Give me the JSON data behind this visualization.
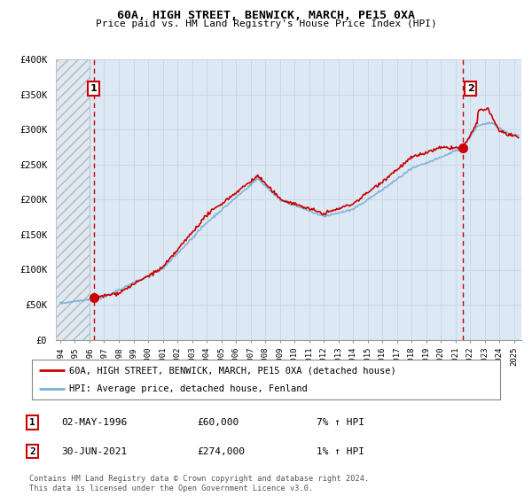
{
  "title": "60A, HIGH STREET, BENWICK, MARCH, PE15 0XA",
  "subtitle": "Price paid vs. HM Land Registry's House Price Index (HPI)",
  "ylim": [
    0,
    400000
  ],
  "yticks": [
    0,
    50000,
    100000,
    150000,
    200000,
    250000,
    300000,
    350000,
    400000
  ],
  "ytick_labels": [
    "£0",
    "£50K",
    "£100K",
    "£150K",
    "£200K",
    "£250K",
    "£300K",
    "£350K",
    "£400K"
  ],
  "xlim_start": 1993.7,
  "xlim_end": 2025.5,
  "hpi_color": "#7bafd4",
  "price_color": "#cc0000",
  "sale1_year": 1996.33,
  "sale1_price": 60000,
  "sale1_label": "1",
  "sale2_year": 2021.5,
  "sale2_price": 274000,
  "sale2_label": "2",
  "legend_line1": "60A, HIGH STREET, BENWICK, MARCH, PE15 0XA (detached house)",
  "legend_line2": "HPI: Average price, detached house, Fenland",
  "table_row1_num": "1",
  "table_row1_date": "02-MAY-1996",
  "table_row1_price": "£60,000",
  "table_row1_hpi": "7% ↑ HPI",
  "table_row2_num": "2",
  "table_row2_date": "30-JUN-2021",
  "table_row2_price": "£274,000",
  "table_row2_hpi": "1% ↑ HPI",
  "footnote": "Contains HM Land Registry data © Crown copyright and database right 2024.\nThis data is licensed under the Open Government Licence v3.0.",
  "grid_color": "#c8d8e8",
  "plot_bg": "#dce8f4"
}
